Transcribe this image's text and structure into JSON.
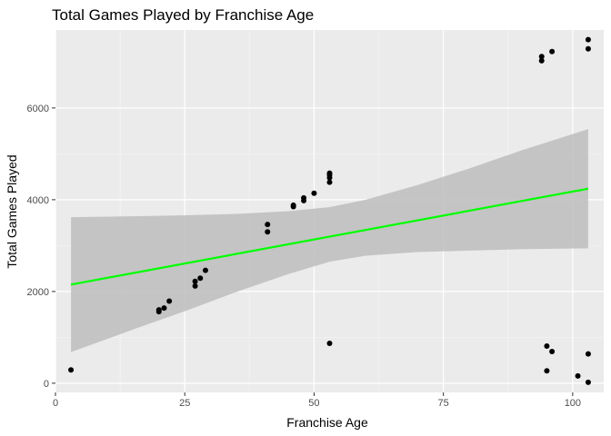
{
  "chart_data": {
    "type": "scatter",
    "title": "Total Games Played by Franchise Age",
    "xlabel": "Franchise Age",
    "ylabel": "Total Games Played",
    "xlim": [
      0,
      106
    ],
    "ylim": [
      -200,
      7700
    ],
    "xticks": [
      0,
      25,
      50,
      75,
      100
    ],
    "yticks": [
      0,
      2000,
      4000,
      6000
    ],
    "grid": true,
    "legend": "none",
    "colors": {
      "panel": "#EBEBEB",
      "grid_major": "#FFFFFF",
      "grid_minor": "#F5F5F5",
      "points": "#000000",
      "fit_line": "#00FF00",
      "ribbon": "#BDBDBD"
    },
    "points": [
      {
        "x": 3,
        "y": 290
      },
      {
        "x": 20,
        "y": 1560
      },
      {
        "x": 20,
        "y": 1600
      },
      {
        "x": 21,
        "y": 1640
      },
      {
        "x": 22,
        "y": 1790
      },
      {
        "x": 27,
        "y": 2120
      },
      {
        "x": 27,
        "y": 2220
      },
      {
        "x": 28,
        "y": 2290
      },
      {
        "x": 29,
        "y": 2460
      },
      {
        "x": 41,
        "y": 3300
      },
      {
        "x": 41,
        "y": 3460
      },
      {
        "x": 46,
        "y": 3850
      },
      {
        "x": 46,
        "y": 3880
      },
      {
        "x": 48,
        "y": 3980
      },
      {
        "x": 48,
        "y": 4040
      },
      {
        "x": 50,
        "y": 4140
      },
      {
        "x": 53,
        "y": 4380
      },
      {
        "x": 53,
        "y": 4480
      },
      {
        "x": 53,
        "y": 4540
      },
      {
        "x": 53,
        "y": 4580
      },
      {
        "x": 53,
        "y": 870
      },
      {
        "x": 94,
        "y": 7030
      },
      {
        "x": 94,
        "y": 7120
      },
      {
        "x": 96,
        "y": 7230
      },
      {
        "x": 103,
        "y": 7290
      },
      {
        "x": 103,
        "y": 7490
      },
      {
        "x": 95,
        "y": 810
      },
      {
        "x": 95,
        "y": 270
      },
      {
        "x": 96,
        "y": 690
      },
      {
        "x": 101,
        "y": 160
      },
      {
        "x": 103,
        "y": 640
      },
      {
        "x": 103,
        "y": 20
      }
    ],
    "fit_line": {
      "x": [
        3,
        103
      ],
      "y": [
        2150,
        4240
      ]
    },
    "confidence_band": {
      "x": [
        3,
        15,
        25,
        35,
        45,
        53,
        60,
        70,
        80,
        90,
        103
      ],
      "upper": [
        3620,
        3640,
        3660,
        3690,
        3750,
        3840,
        4000,
        4320,
        4680,
        5070,
        5540
      ],
      "lower": [
        680,
        1170,
        1570,
        1990,
        2380,
        2650,
        2780,
        2860,
        2890,
        2920,
        2940
      ]
    }
  }
}
